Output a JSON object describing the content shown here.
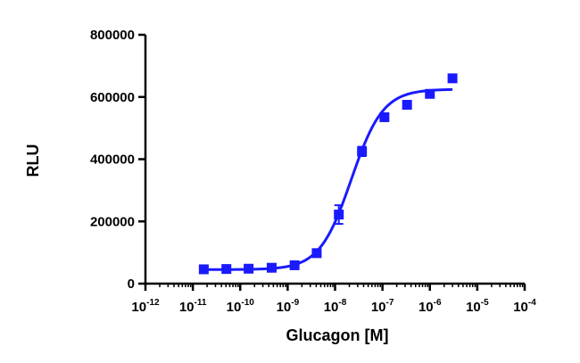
{
  "chart_data": {
    "type": "scatter",
    "xlabel": "Glucagon [M]",
    "ylabel": "RLU",
    "x_scale": "log",
    "x_ticks": [
      1e-12,
      1e-11,
      1e-10,
      1e-09,
      1e-08,
      1e-07,
      1e-06,
      1e-05,
      0.0001
    ],
    "x_tick_labels": [
      "-12",
      "-11",
      "-10",
      "-9",
      "-8",
      "-7",
      "-6",
      "-5",
      "-4"
    ],
    "x_tick_base": "10",
    "xlim": [
      1e-12,
      0.0001
    ],
    "y_ticks": [
      0,
      200000,
      400000,
      600000,
      800000
    ],
    "y_tick_labels": [
      "0",
      "200000",
      "400000",
      "600000",
      "800000"
    ],
    "ylim": [
      0,
      800000
    ],
    "grid": false,
    "series": [
      {
        "color": "#1a1aff",
        "marker": "square",
        "points": [
          {
            "x": 1.7e-11,
            "y": 46000
          },
          {
            "x": 5.1e-11,
            "y": 47000
          },
          {
            "x": 1.5e-10,
            "y": 48000
          },
          {
            "x": 4.6e-10,
            "y": 51000
          },
          {
            "x": 1.4e-09,
            "y": 59000
          },
          {
            "x": 4.1e-09,
            "y": 98000
          },
          {
            "x": 1.2e-08,
            "y": 222000,
            "err": 30000
          },
          {
            "x": 3.7e-08,
            "y": 425000,
            "err": 15000
          },
          {
            "x": 1.1e-07,
            "y": 535000
          },
          {
            "x": 3.3e-07,
            "y": 575000
          },
          {
            "x": 1e-06,
            "y": 610000
          },
          {
            "x": 3e-06,
            "y": 660000
          }
        ],
        "fit": {
          "model": "four-parameter logistic",
          "bottom": 45000,
          "top": 625000,
          "ec50": 2.2e-08,
          "hill": 1.3,
          "x_range": [
            1.7e-11,
            3e-06
          ]
        }
      }
    ]
  }
}
